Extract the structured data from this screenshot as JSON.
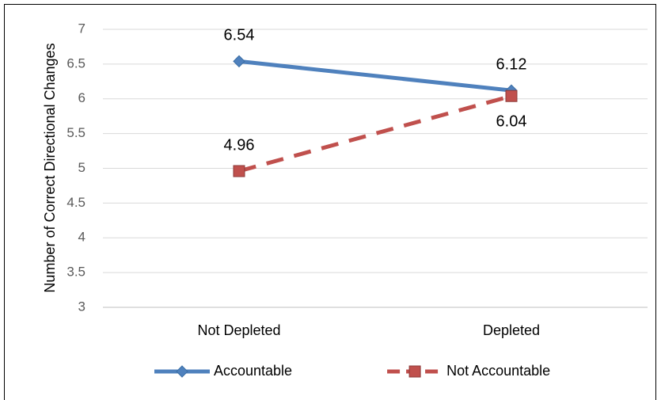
{
  "chart_data": {
    "type": "line",
    "y_label": "Number of Correct Directional Changes",
    "categories": [
      "Not Depleted",
      "Depleted"
    ],
    "series": [
      {
        "name": "Accountable",
        "color": "#4f81bd",
        "dash": false,
        "marker": "diamond",
        "values": [
          6.54,
          6.12
        ]
      },
      {
        "name": "Not Accountable",
        "color": "#c0504d",
        "dash": true,
        "marker": "square",
        "values": [
          4.96,
          6.04
        ]
      }
    ],
    "ylim": [
      3,
      7
    ],
    "yticks": [
      3,
      3.5,
      4,
      4.5,
      5,
      5.5,
      6,
      6.5,
      7
    ],
    "grid": true,
    "legend": "bottom"
  }
}
